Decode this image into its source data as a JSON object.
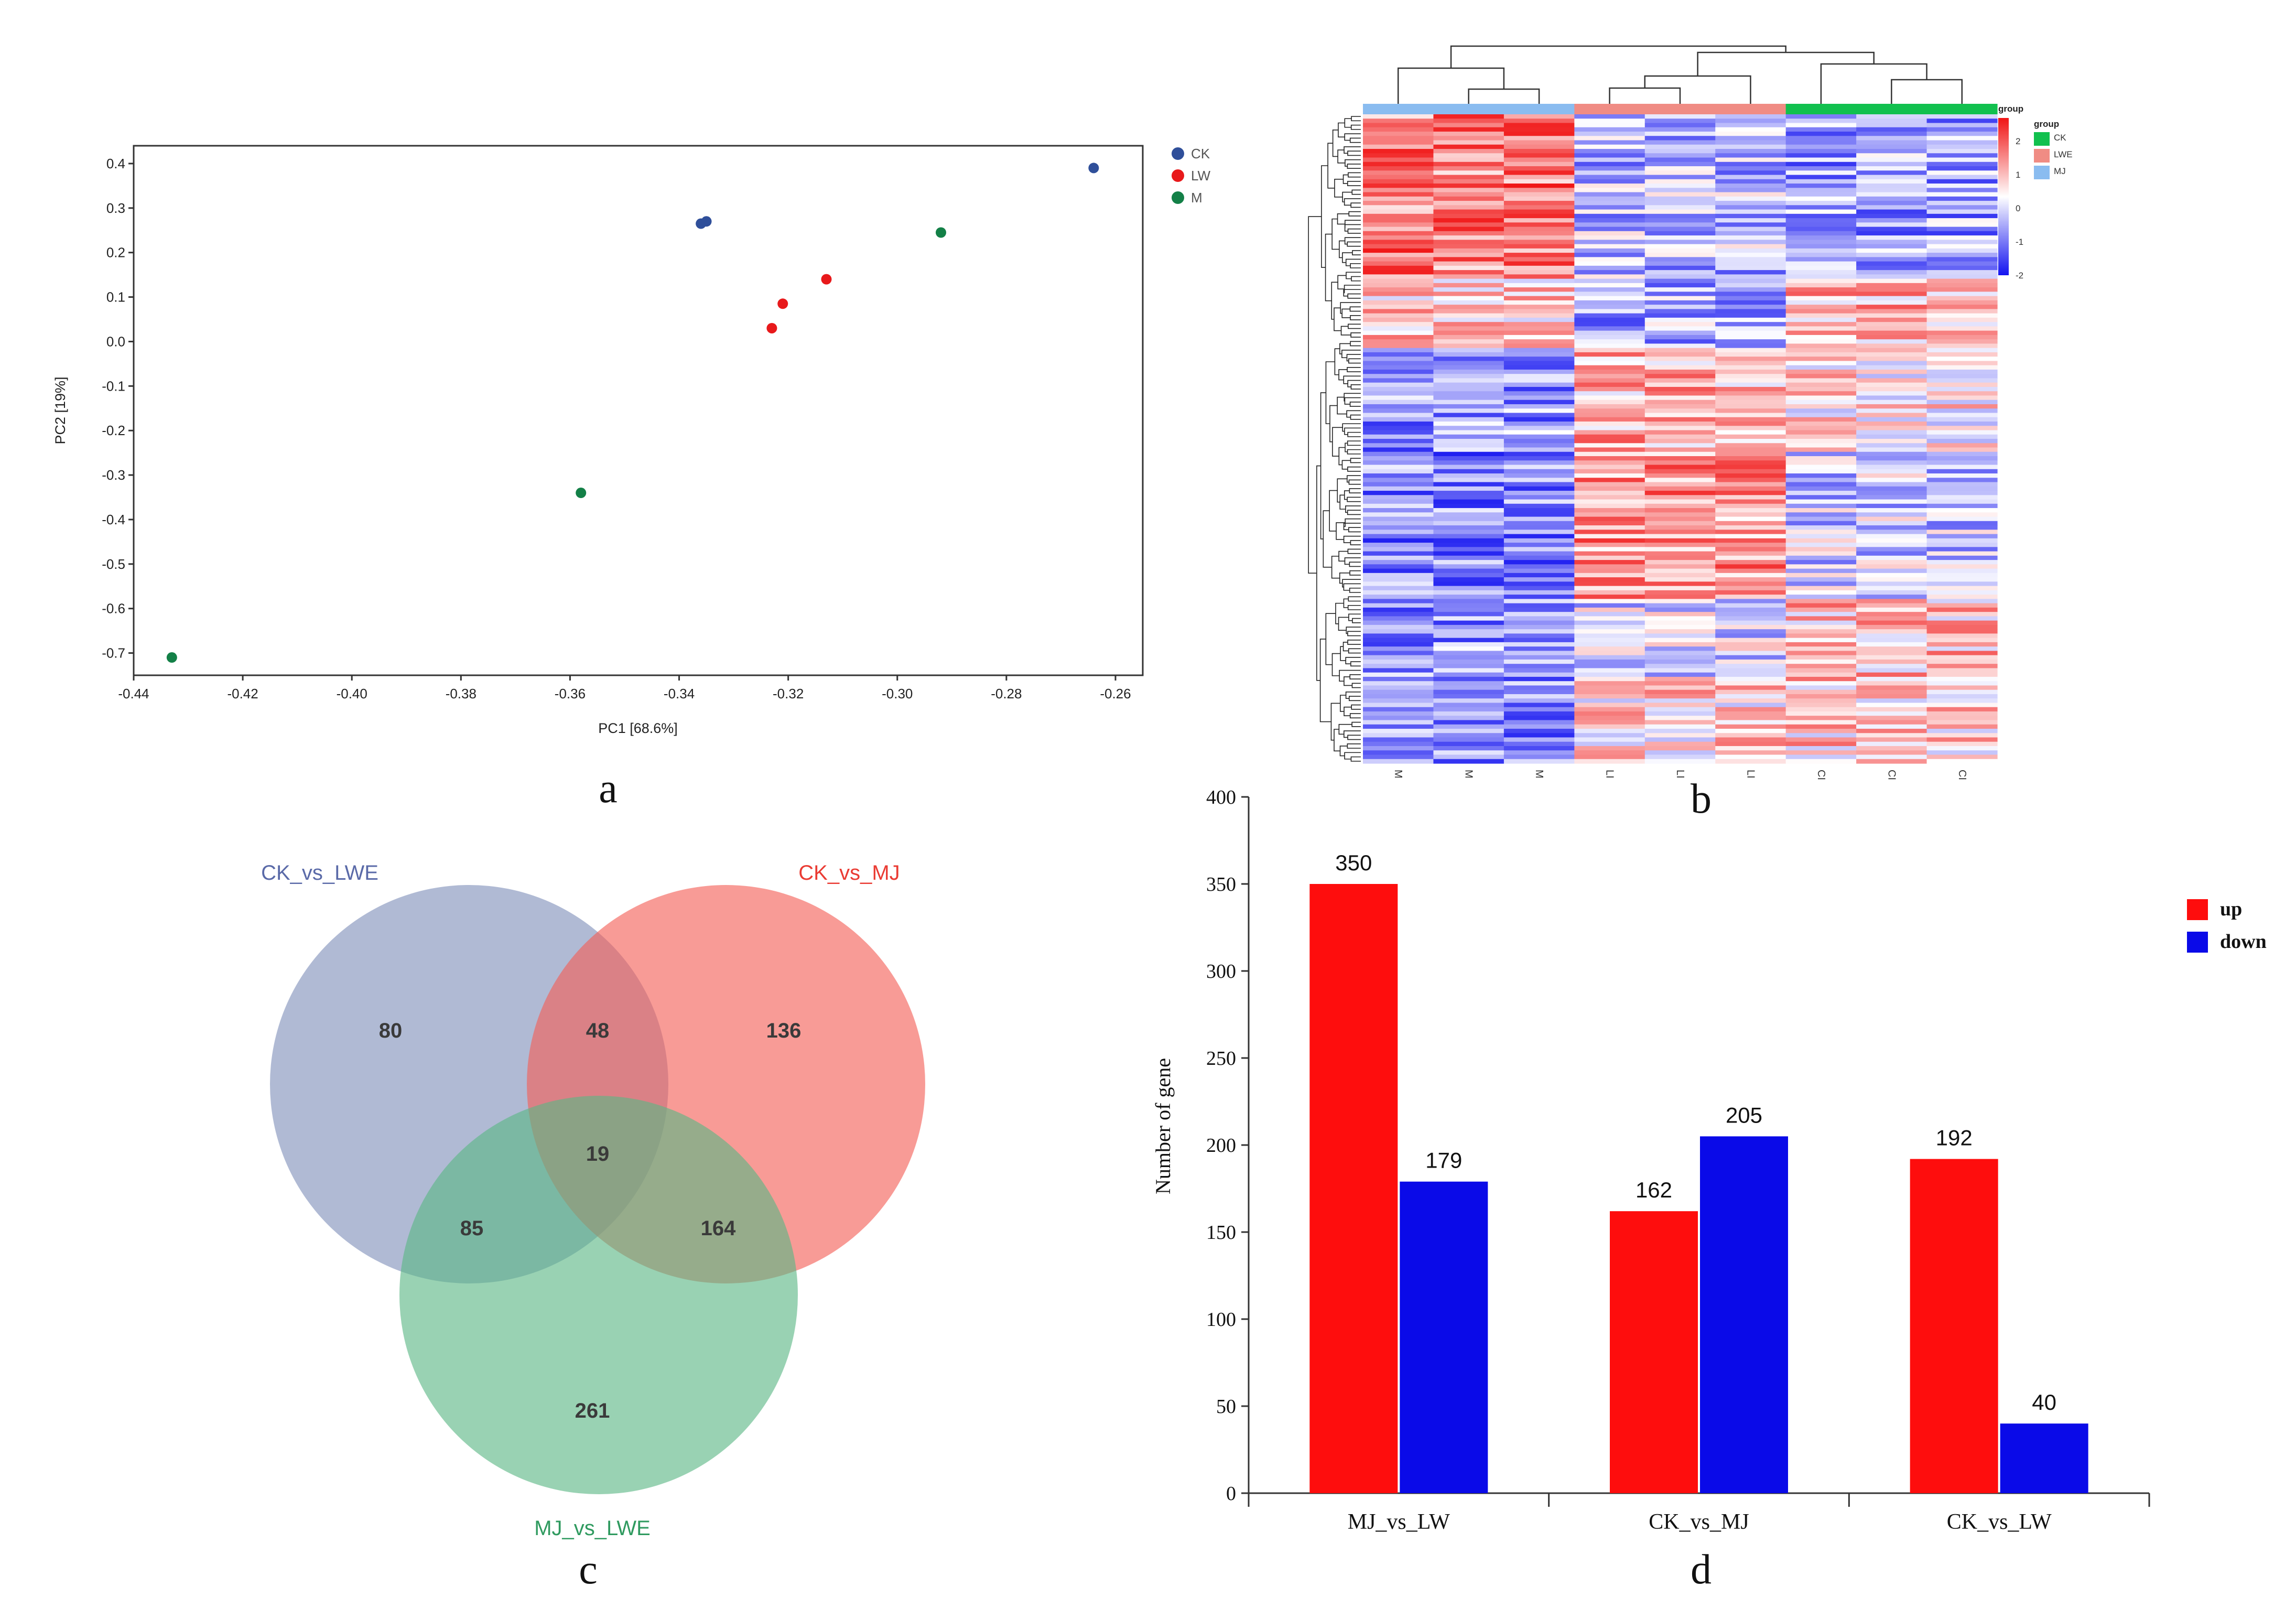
{
  "chart_data": [
    {
      "panel": "a",
      "type": "scatter",
      "xlabel": "PC1 [68.6%]",
      "ylabel": "PC2 [19%]",
      "xlim": [
        -0.44,
        -0.255
      ],
      "ylim": [
        -0.75,
        0.44
      ],
      "xticks": [
        -0.44,
        -0.42,
        -0.4,
        -0.38,
        -0.36,
        -0.34,
        -0.32,
        -0.3,
        -0.28,
        -0.26
      ],
      "yticks": [
        0.4,
        0.3,
        0.2,
        0.1,
        0.0,
        -0.1,
        -0.2,
        -0.3,
        -0.4,
        -0.5,
        -0.6,
        -0.7
      ],
      "xtick_labels": [
        "-0.44",
        "-0.42",
        "-0.40",
        "-0.38",
        "-0.36",
        "-0.34",
        "-0.32",
        "-0.30",
        "-0.28",
        "-0.26"
      ],
      "ytick_labels": [
        "0.4",
        "0.3",
        "0.2",
        "0.1",
        "0.0",
        "-0.1",
        "-0.2",
        "-0.3",
        "-0.4",
        "-0.5",
        "-0.6",
        "-0.7"
      ],
      "legend_position": "right",
      "series": [
        {
          "name": "CK",
          "color": "#2f4f9a",
          "points": [
            [
              -0.336,
              0.265
            ],
            [
              -0.335,
              0.27
            ],
            [
              -0.264,
              0.39
            ]
          ]
        },
        {
          "name": "LW",
          "color": "#e8191b",
          "points": [
            [
              -0.321,
              0.085
            ],
            [
              -0.323,
              0.03
            ],
            [
              -0.313,
              0.14
            ]
          ]
        },
        {
          "name": "M",
          "color": "#138047",
          "points": [
            [
              -0.292,
              0.245
            ],
            [
              -0.358,
              -0.34
            ],
            [
              -0.433,
              -0.71
            ]
          ]
        }
      ]
    },
    {
      "panel": "b",
      "type": "heatmap",
      "columns": [
        "M",
        "M",
        "M",
        "LI",
        "LI",
        "LI",
        "CI",
        "CI",
        "CI"
      ],
      "column_groups": [
        "MJ",
        "MJ",
        "MJ",
        "LWE",
        "LWE",
        "LWE",
        "CK",
        "CK",
        "CK"
      ],
      "group_colors": {
        "CK": "#11c04e",
        "LWE": "#f08c84",
        "MJ": "#8abcf0"
      },
      "group_title": "group",
      "legend_title": "group",
      "legend_items": [
        "CK",
        "LWE",
        "MJ"
      ],
      "scale_title": "group",
      "scale_ticks": [
        "2",
        "1",
        "0",
        "-1",
        "-2"
      ],
      "scale_colors": [
        "#1414f0",
        "#ffffff",
        "#f01414"
      ],
      "row_pattern": [
        "high",
        "high",
        "high",
        "low",
        "low",
        "low",
        "mid",
        "mid",
        "mid"
      ]
    },
    {
      "panel": "c",
      "type": "venn",
      "sets": [
        {
          "name": "CK_vs_LWE",
          "color": "#7f8fb9"
        },
        {
          "name": "CK_vs_MJ",
          "color": "#f45d55"
        },
        {
          "name": "MJ_vs_LWE",
          "color": "#5ab784"
        }
      ],
      "regions": [
        {
          "sets": [
            "CK_vs_LWE"
          ],
          "value": 80
        },
        {
          "sets": [
            "CK_vs_MJ"
          ],
          "value": 136
        },
        {
          "sets": [
            "MJ_vs_LWE"
          ],
          "value": 261
        },
        {
          "sets": [
            "CK_vs_LWE",
            "CK_vs_MJ"
          ],
          "value": 48
        },
        {
          "sets": [
            "CK_vs_LWE",
            "MJ_vs_LWE"
          ],
          "value": 85
        },
        {
          "sets": [
            "CK_vs_MJ",
            "MJ_vs_LWE"
          ],
          "value": 164
        },
        {
          "sets": [
            "CK_vs_LWE",
            "CK_vs_MJ",
            "MJ_vs_LWE"
          ],
          "value": 19
        }
      ]
    },
    {
      "panel": "d",
      "type": "bar",
      "categories": [
        "MJ_vs_LW",
        "CK_vs_MJ",
        "CK_vs_LW"
      ],
      "series": [
        {
          "name": "up",
          "color": "#fe0d0d",
          "values": [
            350,
            162,
            192
          ]
        },
        {
          "name": "down",
          "color": "#0a0ae8",
          "values": [
            179,
            205,
            40
          ]
        }
      ],
      "ylabel": "Number of gene",
      "ylim": [
        0,
        400
      ],
      "yticks": [
        0,
        50,
        100,
        150,
        200,
        250,
        300,
        350,
        400
      ],
      "legend_position": "top-right"
    }
  ],
  "panel_letters": [
    "a",
    "b",
    "c",
    "d"
  ]
}
